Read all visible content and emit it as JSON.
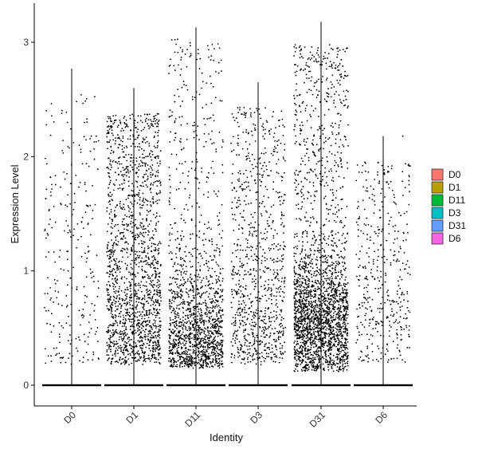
{
  "chart_data": {
    "type": "violin-jitter",
    "xlabel": "Identity",
    "ylabel": "Expression Level",
    "ylim": [
      -0.17,
      3.3
    ],
    "yticks": [
      0,
      1,
      2,
      3
    ],
    "categories": [
      "D0",
      "D1",
      "D11",
      "D3",
      "D31",
      "D6"
    ],
    "legend": {
      "position": "right",
      "entries": [
        {
          "name": "D0",
          "color": "#F8766D"
        },
        {
          "name": "D1",
          "color": "#B79F00"
        },
        {
          "name": "D11",
          "color": "#00BA38"
        },
        {
          "name": "D3",
          "color": "#00BFC4"
        },
        {
          "name": "D31",
          "color": "#619CFF"
        },
        {
          "name": "D6",
          "color": "#F564E3"
        }
      ]
    },
    "series": [
      {
        "category": "D0",
        "max": 2.77,
        "n_expr": 260,
        "mean_expr": 1.0
      },
      {
        "category": "D1",
        "max": 2.6,
        "n_expr": 1700,
        "mean_expr": 1.15
      },
      {
        "category": "D11",
        "max": 3.13,
        "n_expr": 1500,
        "mean_expr": 0.55
      },
      {
        "category": "D3",
        "max": 2.65,
        "n_expr": 900,
        "mean_expr": 0.75
      },
      {
        "category": "D31",
        "max": 3.18,
        "n_expr": 2600,
        "mean_expr": 0.75
      },
      {
        "category": "D6",
        "max": 2.18,
        "n_expr": 420,
        "mean_expr": 0.8
      }
    ]
  }
}
